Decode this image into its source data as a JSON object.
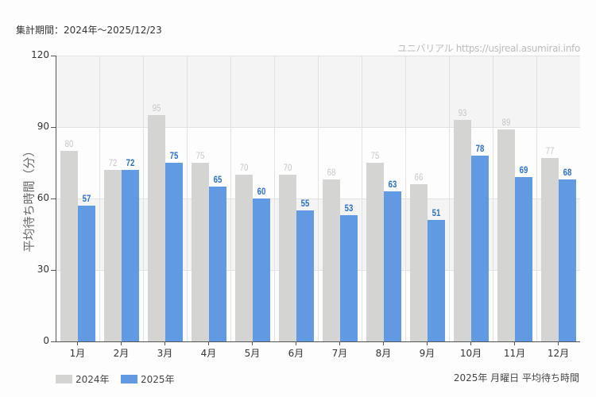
{
  "header": {
    "period": "集計期間：2024年～2025/12/23",
    "credit": "ユニバリアル  https://usjreal.asumirai.info"
  },
  "legend": [
    {
      "label": "2024年",
      "color": "#d4d5d3"
    },
    {
      "label": "2025年",
      "color": "#6199e2"
    }
  ],
  "footnote": "2025年 月曜日 平均待ち時間",
  "colors": {
    "series_2024": "#d4d5d3",
    "series_2025": "#6199e2",
    "label_2024": "#c6c6c6",
    "label_2025": "#2b6fc9",
    "band": "#f4f4f4"
  },
  "chart_data": {
    "type": "bar",
    "title": "2025年 月曜日 平均待ち時間",
    "xlabel": "",
    "ylabel": "平均待ち時間（分）",
    "ylim": [
      0,
      120
    ],
    "yticks": [
      "0",
      "30",
      "60",
      "90",
      "120"
    ],
    "categories": [
      "1月",
      "2月",
      "3月",
      "4月",
      "5月",
      "6月",
      "7月",
      "8月",
      "9月",
      "10月",
      "11月",
      "12月"
    ],
    "series": [
      {
        "name": "2024年",
        "values": [
          80,
          72,
          95,
          75,
          70,
          70,
          68,
          75,
          66,
          93,
          89,
          77
        ]
      },
      {
        "name": "2025年",
        "values": [
          57,
          72,
          75,
          65,
          60,
          55,
          53,
          63,
          51,
          78,
          69,
          68
        ]
      }
    ],
    "grid": true,
    "legend_position": "bottom-left"
  }
}
